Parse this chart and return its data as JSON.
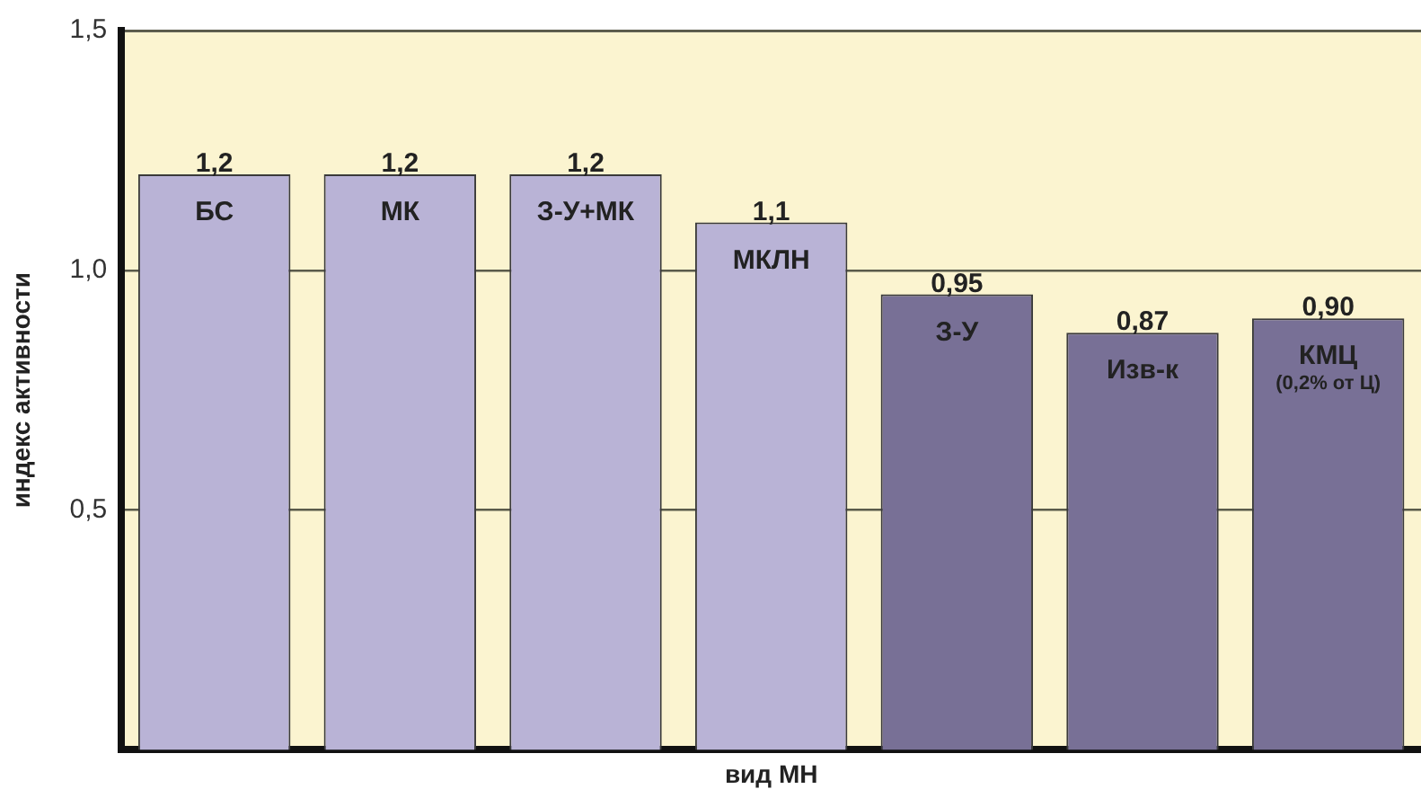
{
  "chart_data": {
    "type": "bar",
    "xlabel": "вид МН",
    "ylabel": "индекс активности",
    "categories": [
      "БС",
      "МК",
      "З-У+МК",
      "МКЛН",
      "З-У",
      "Изв-к",
      "КМЦ\n(0,2% от Ц)"
    ],
    "values": [
      1.2,
      1.2,
      1.2,
      1.1,
      0.95,
      0.87,
      0.9
    ],
    "value_labels": [
      "1,2",
      "1,2",
      "1,2",
      "1,1",
      "0,95",
      "0,87",
      "0,90"
    ],
    "colors": [
      "#b9b3d6",
      "#b9b3d6",
      "#b9b3d6",
      "#b9b3d6",
      "#787096",
      "#787096",
      "#787096"
    ],
    "ylim": [
      0,
      1.5
    ],
    "yticks": [
      {
        "value": 0.5,
        "label": "0,5"
      },
      {
        "value": 1.0,
        "label": "1,0"
      },
      {
        "value": 1.5,
        "label": "1,5"
      }
    ],
    "grid": "y",
    "legend": false,
    "tick_labels": "y"
  }
}
